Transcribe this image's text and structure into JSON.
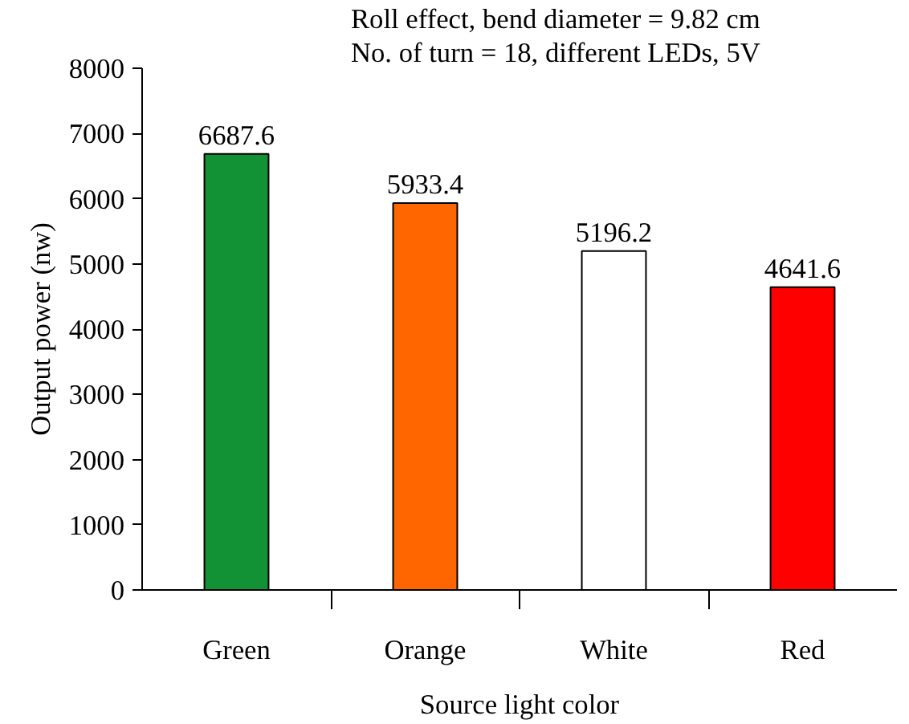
{
  "chart_data": {
    "type": "bar",
    "categories": [
      "Green",
      "Orange",
      "White",
      "Red"
    ],
    "values": [
      6687.6,
      5933.4,
      5196.2,
      4641.6
    ],
    "colors": [
      "#129235",
      "#ff6600",
      "#ffffff",
      "#ff0000"
    ],
    "xlabel": "Source light color",
    "ylabel": "Output power (nw)",
    "annotations": [
      "Roll effect, bend diameter = 9.82 cm",
      "No. of turn = 18, different LEDs, 5V"
    ],
    "ylim": [
      0,
      8000
    ],
    "yticks": [
      0,
      1000,
      2000,
      3000,
      4000,
      5000,
      6000,
      7000,
      8000
    ],
    "grid": false,
    "data_labels": true
  }
}
